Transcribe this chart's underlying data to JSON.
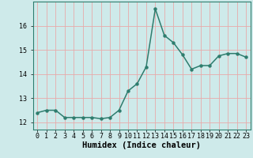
{
  "x": [
    0,
    1,
    2,
    3,
    4,
    5,
    6,
    7,
    8,
    9,
    10,
    11,
    12,
    13,
    14,
    15,
    16,
    17,
    18,
    19,
    20,
    21,
    22,
    23
  ],
  "y": [
    12.4,
    12.5,
    12.5,
    12.2,
    12.2,
    12.2,
    12.2,
    12.15,
    12.2,
    12.5,
    13.3,
    13.6,
    14.3,
    16.7,
    15.6,
    15.3,
    14.8,
    14.2,
    14.35,
    14.35,
    14.75,
    14.85,
    14.85,
    14.7
  ],
  "line_color": "#2e7d6e",
  "marker": "o",
  "marker_size": 2.2,
  "bg_color": "#ceeaea",
  "grid_color": "#e8aaaa",
  "axis_color": "#2e7d6e",
  "xlabel": "Humidex (Indice chaleur)",
  "xlabel_fontsize": 7.5,
  "ylabel_ticks": [
    12,
    13,
    14,
    15,
    16
  ],
  "ylim": [
    11.7,
    17.0
  ],
  "xlim": [
    -0.5,
    23.5
  ],
  "xtick_labels": [
    "0",
    "1",
    "2",
    "3",
    "4",
    "5",
    "6",
    "7",
    "8",
    "9",
    "10",
    "11",
    "12",
    "13",
    "14",
    "15",
    "16",
    "17",
    "18",
    "19",
    "20",
    "21",
    "22",
    "23"
  ],
  "tick_fontsize": 6.0,
  "linewidth": 1.1
}
